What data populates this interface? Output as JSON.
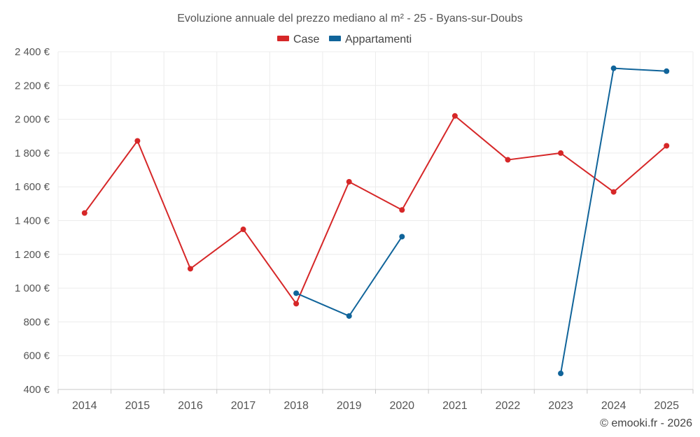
{
  "chart_data": {
    "type": "line",
    "title": "Evoluzione annuale del prezzo mediano al m² - 25 - Byans-sur-Doubs",
    "categories": [
      "2014",
      "2015",
      "2016",
      "2017",
      "2018",
      "2019",
      "2020",
      "2021",
      "2022",
      "2023",
      "2024",
      "2025"
    ],
    "ylim": [
      400,
      2400
    ],
    "yticks": [
      400,
      600,
      800,
      1000,
      1200,
      1400,
      1600,
      1800,
      2000,
      2200,
      2400
    ],
    "ytick_labels": [
      "400 €",
      "600 €",
      "800 €",
      "1 000 €",
      "1 200 €",
      "1 400 €",
      "1 600 €",
      "1 800 €",
      "2 000 €",
      "2 200 €",
      "2 400 €"
    ],
    "grid": true,
    "legend_position": "top-center",
    "series": [
      {
        "name": "Case",
        "color": "#d62728",
        "values": [
          1445,
          1872,
          1115,
          1348,
          908,
          1630,
          1463,
          2020,
          1760,
          1800,
          1570,
          1843
        ]
      },
      {
        "name": "Appartamenti",
        "color": "#10649a",
        "values": [
          null,
          null,
          null,
          null,
          970,
          835,
          1305,
          null,
          null,
          495,
          2302,
          2285
        ]
      }
    ],
    "credit": "© emooki.fr - 2026"
  }
}
